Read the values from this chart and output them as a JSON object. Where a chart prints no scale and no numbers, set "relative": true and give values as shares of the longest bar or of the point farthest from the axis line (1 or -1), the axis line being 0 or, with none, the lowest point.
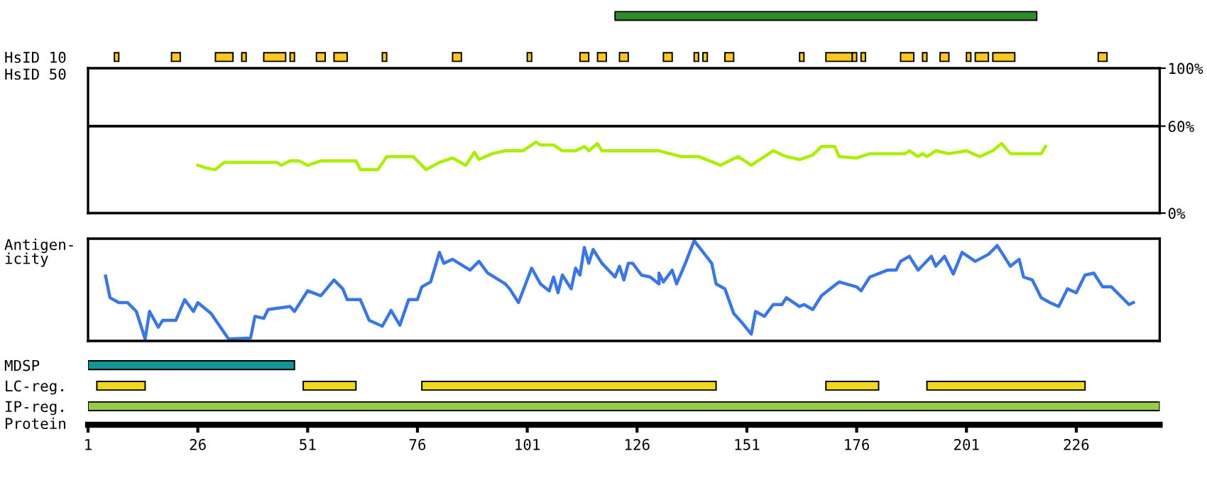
{
  "chart_data": [
    {
      "type": "bar",
      "orientation": "horizontal",
      "categories": [
        null,
        null,
        "HsID 10",
        null,
        null,
        null,
        null,
        null,
        null,
        null,
        null,
        null,
        null,
        null,
        null,
        null,
        null,
        "MDSP",
        "LC-reg.",
        "IP-reg."
      ],
      "xlabel": "Protein",
      "series": [
        {
          "color": "#2e8b2e",
          "values": [
            96,
            null,
            null,
            null,
            null,
            null,
            null,
            null,
            null,
            null,
            null,
            null,
            null,
            null,
            null,
            null,
            null,
            null,
            null,
            null
          ],
          "base": [
            121,
            null,
            null,
            null,
            null,
            null,
            null,
            null,
            null,
            null,
            null,
            null,
            null,
            null,
            null,
            null,
            null,
            null,
            null,
            null
          ]
        },
        {
          "color": "#ffc820",
          "values": [
            null,
            null,
            1,
            null,
            null,
            null,
            null,
            null,
            null,
            null,
            null,
            null,
            null,
            null,
            null,
            null,
            null,
            null,
            null,
            null
          ],
          "base": [
            null,
            null,
            7,
            null,
            null,
            null,
            null,
            null,
            null,
            null,
            null,
            null,
            null,
            null,
            null,
            null,
            null,
            null,
            null,
            null
          ]
        },
        {
          "color": "#ffc820",
          "values": [
            null,
            null,
            2,
            null,
            null,
            null,
            null,
            null,
            null,
            null,
            null,
            null,
            null,
            null,
            null,
            null,
            null,
            null,
            null,
            null
          ],
          "base": [
            null,
            null,
            20,
            null,
            null,
            null,
            null,
            null,
            null,
            null,
            null,
            null,
            null,
            null,
            null,
            null,
            null,
            null,
            null,
            null
          ]
        },
        {
          "color": "#ffc820",
          "values": [
            null,
            null,
            4,
            null,
            null,
            null,
            null,
            null,
            null,
            null,
            null,
            null,
            null,
            null,
            null,
            null,
            null,
            null,
            null,
            null
          ],
          "base": [
            null,
            null,
            30,
            null,
            null,
            null,
            null,
            null,
            null,
            null,
            null,
            null,
            null,
            null,
            null,
            null,
            null,
            null,
            null,
            null
          ]
        },
        {
          "color": "#ffc820",
          "values": [
            null,
            null,
            1,
            null,
            null,
            null,
            null,
            null,
            null,
            null,
            null,
            null,
            null,
            null,
            null,
            null,
            null,
            null,
            null,
            null
          ],
          "base": [
            null,
            null,
            36,
            null,
            null,
            null,
            null,
            null,
            null,
            null,
            null,
            null,
            null,
            null,
            null,
            null,
            null,
            null,
            null,
            null
          ]
        },
        {
          "color": "#ffc820",
          "values": [
            null,
            null,
            5,
            null,
            null,
            null,
            null,
            null,
            null,
            null,
            null,
            null,
            null,
            null,
            null,
            null,
            null,
            null,
            null,
            null
          ],
          "base": [
            null,
            null,
            41,
            null,
            null,
            null,
            null,
            null,
            null,
            null,
            null,
            null,
            null,
            null,
            null,
            null,
            null,
            null,
            null,
            null
          ]
        },
        {
          "color": "#ffc820",
          "values": [
            null,
            null,
            1,
            null,
            null,
            null,
            null,
            null,
            null,
            null,
            null,
            null,
            null,
            null,
            null,
            null,
            null,
            null,
            null,
            null
          ],
          "base": [
            null,
            null,
            47,
            null,
            null,
            null,
            null,
            null,
            null,
            null,
            null,
            null,
            null,
            null,
            null,
            null,
            null,
            null,
            null,
            null
          ]
        },
        {
          "color": "#ffc820",
          "values": [
            null,
            null,
            2,
            null,
            null,
            null,
            null,
            null,
            null,
            null,
            null,
            null,
            null,
            null,
            null,
            null,
            null,
            null,
            null,
            null
          ],
          "base": [
            null,
            null,
            53,
            null,
            null,
            null,
            null,
            null,
            null,
            null,
            null,
            null,
            null,
            null,
            null,
            null,
            null,
            null,
            null,
            null
          ]
        },
        {
          "color": "#ffc820",
          "values": [
            null,
            null,
            3,
            null,
            null,
            null,
            null,
            null,
            null,
            null,
            null,
            null,
            null,
            null,
            null,
            null,
            null,
            null,
            null,
            null
          ],
          "base": [
            null,
            null,
            57,
            null,
            null,
            null,
            null,
            null,
            null,
            null,
            null,
            null,
            null,
            null,
            null,
            null,
            null,
            null,
            null,
            null
          ]
        },
        {
          "color": "#ffc820",
          "values": [
            null,
            null,
            1,
            null,
            null,
            null,
            null,
            null,
            null,
            null,
            null,
            null,
            null,
            null,
            null,
            null,
            null,
            null,
            null,
            null
          ],
          "base": [
            null,
            null,
            68,
            null,
            null,
            null,
            null,
            null,
            null,
            null,
            null,
            null,
            null,
            null,
            null,
            null,
            null,
            null,
            null,
            null
          ]
        },
        {
          "color": "#ffc820",
          "values": [
            null,
            null,
            2,
            null,
            null,
            null,
            null,
            null,
            null,
            null,
            null,
            null,
            null,
            null,
            null,
            null,
            null,
            null,
            null,
            null
          ],
          "base": [
            null,
            null,
            84,
            null,
            null,
            null,
            null,
            null,
            null,
            null,
            null,
            null,
            null,
            null,
            null,
            null,
            null,
            null,
            null,
            null
          ]
        },
        {
          "color": "#ffc820",
          "values": [
            null,
            null,
            1,
            null,
            null,
            null,
            null,
            null,
            null,
            null,
            null,
            null,
            null,
            null,
            null,
            null,
            null,
            null,
            null,
            null
          ],
          "base": [
            null,
            null,
            101,
            null,
            null,
            null,
            null,
            null,
            null,
            null,
            null,
            null,
            null,
            null,
            null,
            null,
            null,
            null,
            null,
            null
          ]
        },
        {
          "color": "#ffc820",
          "values": [
            null,
            null,
            2,
            null,
            null,
            null,
            null,
            null,
            null,
            null,
            null,
            null,
            null,
            null,
            null,
            null,
            null,
            null,
            null,
            null
          ],
          "base": [
            null,
            null,
            113,
            null,
            null,
            null,
            null,
            null,
            null,
            null,
            null,
            null,
            null,
            null,
            null,
            null,
            null,
            null,
            null,
            null
          ]
        },
        {
          "color": "#ffc820",
          "values": [
            null,
            null,
            2,
            null,
            null,
            null,
            null,
            null,
            null,
            null,
            null,
            null,
            null,
            null,
            null,
            null,
            null,
            null,
            null,
            null
          ],
          "base": [
            null,
            null,
            117,
            null,
            null,
            null,
            null,
            null,
            null,
            null,
            null,
            null,
            null,
            null,
            null,
            null,
            null,
            null,
            null,
            null
          ]
        },
        {
          "color": "#ffc820",
          "values": [
            null,
            null,
            2,
            null,
            null,
            null,
            null,
            null,
            null,
            null,
            null,
            null,
            null,
            null,
            null,
            null,
            null,
            null,
            null,
            null
          ],
          "base": [
            null,
            null,
            122,
            null,
            null,
            null,
            null,
            null,
            null,
            null,
            null,
            null,
            null,
            null,
            null,
            null,
            null,
            null,
            null,
            null
          ]
        },
        {
          "color": "#ffc820",
          "values": [
            null,
            null,
            2,
            null,
            null,
            null,
            null,
            null,
            null,
            null,
            null,
            null,
            null,
            null,
            null,
            null,
            null,
            null,
            null,
            null
          ],
          "base": [
            null,
            null,
            132,
            null,
            null,
            null,
            null,
            null,
            null,
            null,
            null,
            null,
            null,
            null,
            null,
            null,
            null,
            null,
            null,
            null
          ]
        },
        {
          "color": "#ffc820",
          "values": [
            null,
            null,
            1,
            null,
            null,
            null,
            null,
            null,
            null,
            null,
            null,
            null,
            null,
            null,
            null,
            null,
            null,
            null,
            null,
            null
          ],
          "base": [
            null,
            null,
            139,
            null,
            null,
            null,
            null,
            null,
            null,
            null,
            null,
            null,
            null,
            null,
            null,
            null,
            null,
            null,
            null,
            null
          ]
        },
        {
          "color": "#ffc820",
          "values": [
            null,
            null,
            1,
            null,
            null,
            null,
            null,
            null,
            null,
            null,
            null,
            null,
            null,
            null,
            null,
            null,
            null,
            null,
            null,
            null
          ],
          "base": [
            null,
            null,
            141,
            null,
            null,
            null,
            null,
            null,
            null,
            null,
            null,
            null,
            null,
            null,
            null,
            null,
            null,
            null,
            null,
            null
          ]
        },
        {
          "color": "#ffc820",
          "values": [
            null,
            null,
            2,
            null,
            null,
            null,
            null,
            null,
            null,
            null,
            null,
            null,
            null,
            null,
            null,
            null,
            null,
            null,
            null,
            null
          ],
          "base": [
            null,
            null,
            146,
            null,
            null,
            null,
            null,
            null,
            null,
            null,
            null,
            null,
            null,
            null,
            null,
            null,
            null,
            null,
            null,
            null
          ]
        },
        {
          "color": "#ffc820",
          "values": [
            null,
            null,
            1,
            null,
            null,
            null,
            null,
            null,
            null,
            null,
            null,
            null,
            null,
            null,
            null,
            null,
            null,
            null,
            null,
            null
          ],
          "base": [
            null,
            null,
            163,
            null,
            null,
            null,
            null,
            null,
            null,
            null,
            null,
            null,
            null,
            null,
            null,
            null,
            null,
            null,
            null,
            null
          ]
        },
        {
          "color": "#ffc820",
          "values": [
            null,
            null,
            6,
            null,
            null,
            null,
            null,
            null,
            null,
            null,
            null,
            null,
            null,
            null,
            null,
            null,
            null,
            null,
            null,
            null
          ],
          "base": [
            null,
            null,
            169,
            null,
            null,
            null,
            null,
            null,
            null,
            null,
            null,
            null,
            null,
            null,
            null,
            null,
            null,
            null,
            null,
            null
          ]
        },
        {
          "color": "#ffc820",
          "values": [
            null,
            null,
            1,
            null,
            null,
            null,
            null,
            null,
            null,
            null,
            null,
            null,
            null,
            null,
            null,
            null,
            null,
            null,
            null,
            null
          ],
          "base": [
            null,
            null,
            175,
            null,
            null,
            null,
            null,
            null,
            null,
            null,
            null,
            null,
            null,
            null,
            null,
            null,
            null,
            null,
            null,
            null
          ]
        },
        {
          "color": "#ffc820",
          "values": [
            null,
            null,
            1,
            null,
            null,
            null,
            null,
            null,
            null,
            null,
            null,
            null,
            null,
            null,
            null,
            null,
            null,
            null,
            null,
            null
          ],
          "base": [
            null,
            null,
            177,
            null,
            null,
            null,
            null,
            null,
            null,
            null,
            null,
            null,
            null,
            null,
            null,
            null,
            null,
            null,
            null,
            null
          ]
        },
        {
          "color": "#ffc820",
          "values": [
            null,
            null,
            3,
            null,
            null,
            null,
            null,
            null,
            null,
            null,
            null,
            null,
            null,
            null,
            null,
            null,
            null,
            null,
            null,
            null
          ],
          "base": [
            null,
            null,
            186,
            null,
            null,
            null,
            null,
            null,
            null,
            null,
            null,
            null,
            null,
            null,
            null,
            null,
            null,
            null,
            null,
            null
          ]
        },
        {
          "color": "#ffc820",
          "values": [
            null,
            null,
            1,
            null,
            null,
            null,
            null,
            null,
            null,
            null,
            null,
            null,
            null,
            null,
            null,
            null,
            null,
            null,
            null,
            null
          ],
          "base": [
            null,
            null,
            191,
            null,
            null,
            null,
            null,
            null,
            null,
            null,
            null,
            null,
            null,
            null,
            null,
            null,
            null,
            null,
            null,
            null
          ]
        },
        {
          "color": "#ffc820",
          "values": [
            null,
            null,
            2,
            null,
            null,
            null,
            null,
            null,
            null,
            null,
            null,
            null,
            null,
            null,
            null,
            null,
            null,
            null,
            null,
            null
          ],
          "base": [
            null,
            null,
            195,
            null,
            null,
            null,
            null,
            null,
            null,
            null,
            null,
            null,
            null,
            null,
            null,
            null,
            null,
            null,
            null,
            null
          ]
        },
        {
          "color": "#ffc820",
          "values": [
            null,
            null,
            1,
            null,
            null,
            null,
            null,
            null,
            null,
            null,
            null,
            null,
            null,
            null,
            null,
            null,
            null,
            null,
            null,
            null
          ],
          "base": [
            null,
            null,
            201,
            null,
            null,
            null,
            null,
            null,
            null,
            null,
            null,
            null,
            null,
            null,
            null,
            null,
            null,
            null,
            null,
            null
          ]
        },
        {
          "color": "#ffc820",
          "values": [
            null,
            null,
            3,
            null,
            null,
            null,
            null,
            null,
            null,
            null,
            null,
            null,
            null,
            null,
            null,
            null,
            null,
            null,
            null,
            null
          ],
          "base": [
            null,
            null,
            203,
            null,
            null,
            null,
            null,
            null,
            null,
            null,
            null,
            null,
            null,
            null,
            null,
            null,
            null,
            null,
            null,
            null
          ]
        },
        {
          "color": "#ffc820",
          "values": [
            null,
            null,
            5,
            null,
            null,
            null,
            null,
            null,
            null,
            null,
            null,
            null,
            null,
            null,
            null,
            null,
            null,
            null,
            null,
            null
          ],
          "base": [
            null,
            null,
            207,
            null,
            null,
            null,
            null,
            null,
            null,
            null,
            null,
            null,
            null,
            null,
            null,
            null,
            null,
            null,
            null,
            null
          ]
        },
        {
          "color": "#ffc820",
          "values": [
            null,
            null,
            2,
            null,
            null,
            null,
            null,
            null,
            null,
            null,
            null,
            null,
            null,
            null,
            null,
            null,
            null,
            null,
            null,
            null
          ],
          "base": [
            null,
            null,
            231,
            null,
            null,
            null,
            null,
            null,
            null,
            null,
            null,
            null,
            null,
            null,
            null,
            null,
            null,
            null,
            null,
            null
          ]
        },
        {
          "color": "#139595",
          "values": [
            null,
            null,
            null,
            null,
            null,
            null,
            null,
            null,
            null,
            null,
            null,
            null,
            null,
            null,
            null,
            null,
            null,
            47,
            null,
            null
          ],
          "base": [
            null,
            null,
            null,
            null,
            null,
            null,
            null,
            null,
            null,
            null,
            null,
            null,
            null,
            null,
            null,
            null,
            null,
            1,
            null,
            null
          ]
        },
        {
          "color": "#f0d820",
          "values": [
            null,
            null,
            null,
            null,
            null,
            null,
            null,
            null,
            null,
            null,
            null,
            null,
            null,
            null,
            null,
            null,
            null,
            null,
            11,
            null
          ],
          "base": [
            null,
            null,
            null,
            null,
            null,
            null,
            null,
            null,
            null,
            null,
            null,
            null,
            null,
            null,
            null,
            null,
            null,
            null,
            3,
            null
          ]
        },
        {
          "color": "#f0d820",
          "values": [
            null,
            null,
            null,
            null,
            null,
            null,
            null,
            null,
            null,
            null,
            null,
            null,
            null,
            null,
            null,
            null,
            null,
            null,
            12,
            null
          ],
          "base": [
            null,
            null,
            null,
            null,
            null,
            null,
            null,
            null,
            null,
            null,
            null,
            null,
            null,
            null,
            null,
            null,
            null,
            null,
            50,
            null
          ]
        },
        {
          "color": "#f0d820",
          "values": [
            null,
            null,
            null,
            null,
            null,
            null,
            null,
            null,
            null,
            null,
            null,
            null,
            null,
            null,
            null,
            null,
            null,
            null,
            67,
            null
          ],
          "base": [
            null,
            null,
            null,
            null,
            null,
            null,
            null,
            null,
            null,
            null,
            null,
            null,
            null,
            null,
            null,
            null,
            null,
            null,
            77,
            null
          ]
        },
        {
          "color": "#f0d820",
          "values": [
            null,
            null,
            null,
            null,
            null,
            null,
            null,
            null,
            null,
            null,
            null,
            null,
            null,
            null,
            null,
            null,
            null,
            null,
            12,
            null
          ],
          "base": [
            null,
            null,
            null,
            null,
            null,
            null,
            null,
            null,
            null,
            null,
            null,
            null,
            null,
            null,
            null,
            null,
            null,
            null,
            169,
            null
          ]
        },
        {
          "color": "#f0d820",
          "values": [
            null,
            null,
            null,
            null,
            null,
            null,
            null,
            null,
            null,
            null,
            null,
            null,
            null,
            null,
            null,
            null,
            null,
            null,
            36,
            null
          ],
          "base": [
            null,
            null,
            null,
            null,
            null,
            null,
            null,
            null,
            null,
            null,
            null,
            null,
            null,
            null,
            null,
            null,
            null,
            null,
            192,
            null
          ]
        },
        {
          "color": "#9acb48",
          "values": [
            null,
            null,
            null,
            null,
            null,
            null,
            null,
            null,
            null,
            null,
            null,
            null,
            null,
            null,
            null,
            null,
            null,
            null,
            null,
            244
          ],
          "base": [
            null,
            null,
            null,
            null,
            null,
            null,
            null,
            null,
            null,
            null,
            null,
            null,
            null,
            null,
            null,
            null,
            null,
            null,
            null,
            1
          ]
        }
      ],
      "xlim": [
        1,
        245
      ],
      "xticks": [
        1,
        26,
        51,
        76,
        101,
        126,
        151,
        176,
        201,
        226
      ]
    },
    {
      "type": "line",
      "ylabel": "HsID 50",
      "color": "#aaee00",
      "x": [
        26,
        28,
        30,
        32,
        44,
        45,
        47,
        49,
        51,
        54,
        62,
        63,
        67,
        69,
        75,
        78,
        81,
        84,
        87,
        89,
        90,
        93,
        96,
        100,
        103,
        104,
        107,
        109,
        112,
        114,
        115,
        117,
        118,
        131,
        136,
        140,
        145,
        149,
        152,
        157,
        160,
        163,
        166,
        168,
        171,
        172,
        176,
        179,
        187,
        188,
        190,
        191,
        192,
        194,
        197,
        201,
        204,
        207,
        209,
        211,
        218,
        219
      ],
      "values": [
        33,
        31,
        30,
        35,
        35,
        33,
        36,
        36,
        33,
        36,
        36,
        30,
        30,
        39,
        39,
        30,
        35,
        38,
        33,
        42,
        37,
        41,
        43,
        43,
        49,
        47,
        47,
        43,
        43,
        46,
        43,
        48,
        43,
        43,
        39,
        39,
        33,
        39,
        33,
        43,
        39,
        37,
        40,
        46,
        46,
        39,
        38,
        41,
        41,
        43,
        39,
        41,
        39,
        43,
        41,
        43,
        39,
        43,
        48,
        41,
        41,
        46
      ],
      "xlim": [
        1,
        245
      ],
      "ylim": [
        0,
        100
      ],
      "yticks": [
        {
          "value": 0,
          "label": "0%"
        },
        {
          "value": 60,
          "label": "60%"
        },
        {
          "value": 100,
          "label": "100%"
        }
      ],
      "ref_lines": [
        {
          "axis": "y",
          "value": 60
        }
      ],
      "tick_labels": "y"
    },
    {
      "type": "line",
      "ylabel": "Antigen-\nicity",
      "color": "#3a76e4",
      "relative": true,
      "x": [
        5,
        6,
        8,
        10,
        12,
        14,
        15,
        17,
        18,
        21,
        23,
        25,
        26,
        29,
        33,
        38,
        39,
        41,
        42,
        47,
        48,
        51,
        54,
        57,
        59,
        60,
        63,
        65,
        68,
        70,
        72,
        74,
        76,
        77,
        79,
        81,
        82,
        84,
        88,
        90,
        92,
        96,
        97,
        99,
        102,
        104,
        106,
        107,
        108,
        109,
        111,
        112,
        113,
        114,
        115,
        116,
        118,
        121,
        122,
        123,
        124,
        125,
        127,
        129,
        131,
        131,
        132,
        134,
        135,
        137,
        139,
        143,
        144,
        146,
        148,
        150,
        152,
        153,
        155,
        157,
        159,
        160,
        163,
        164,
        166,
        168,
        170,
        172,
        176,
        177,
        179,
        183,
        185,
        186,
        188,
        190,
        193,
        194,
        196,
        198,
        200,
        203,
        206,
        208,
        211,
        213,
        214,
        216,
        218,
        220,
        222,
        224,
        226,
        228,
        230,
        232,
        234,
        238,
        239
      ],
      "values": [
        0.64,
        0.42,
        0.37,
        0.37,
        0.28,
        0,
        0.28,
        0.12,
        0.19,
        0.19,
        0.4,
        0.28,
        0.37,
        0.26,
        0,
        0.01,
        0.23,
        0.21,
        0.3,
        0.33,
        0.28,
        0.49,
        0.44,
        0.6,
        0.51,
        0.4,
        0.4,
        0.19,
        0.13,
        0.29,
        0.14,
        0.4,
        0.4,
        0.53,
        0.58,
        0.88,
        0.77,
        0.81,
        0.7,
        0.79,
        0.67,
        0.56,
        0.51,
        0.37,
        0.72,
        0.56,
        0.49,
        0.63,
        0.47,
        0.65,
        0.51,
        0.72,
        0.65,
        0.93,
        0.77,
        0.91,
        0.77,
        0.63,
        0.74,
        0.6,
        0.77,
        0.77,
        0.65,
        0.63,
        0.56,
        0.67,
        0.58,
        0.7,
        0.56,
        0.77,
        1,
        0.77,
        0.56,
        0.51,
        0.26,
        0.16,
        0.05,
        0.28,
        0.23,
        0.35,
        0.35,
        0.42,
        0.33,
        0.35,
        0.3,
        0.44,
        0.51,
        0.58,
        0.53,
        0.49,
        0.63,
        0.7,
        0.7,
        0.79,
        0.84,
        0.7,
        0.84,
        0.74,
        0.84,
        0.66,
        0.88,
        0.79,
        0.86,
        0.95,
        0.74,
        0.81,
        0.63,
        0.6,
        0.42,
        0.37,
        0.33,
        0.51,
        0.47,
        0.65,
        0.67,
        0.53,
        0.53,
        0.35,
        0.37
      ],
      "xlim": [
        1,
        245
      ],
      "tick_labels": false
    }
  ]
}
